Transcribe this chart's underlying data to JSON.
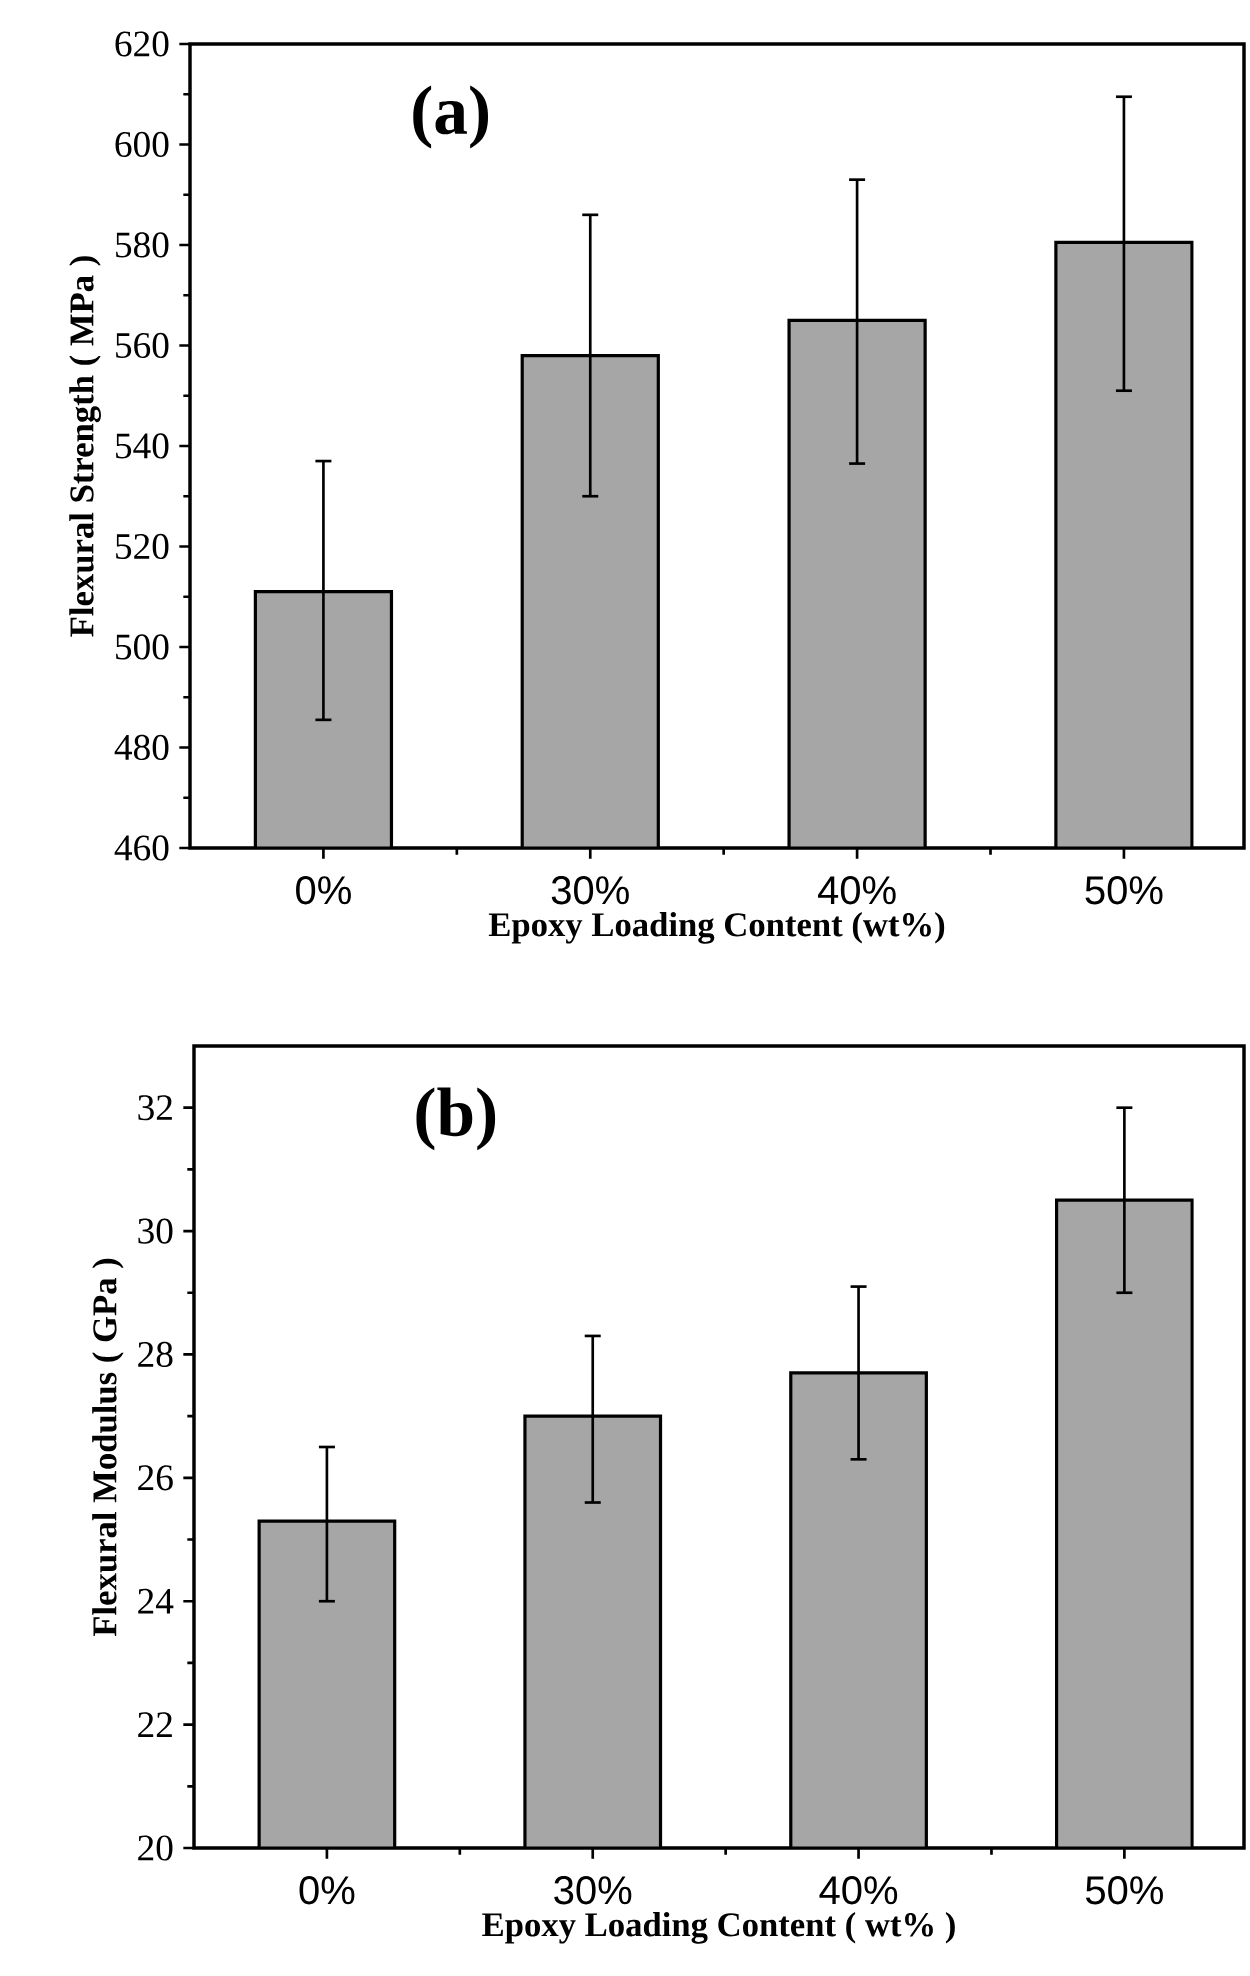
{
  "chart_data": [
    {
      "type": "bar",
      "annotations": [
        "(a)"
      ],
      "xlabel": "Epoxy Loading Content (wt%)",
      "ylabel": "Flexural Strength ( MPa )",
      "categories": [
        "0%",
        "30%",
        "40%",
        "50%"
      ],
      "values": [
        511,
        558,
        565,
        580.5
      ],
      "errors": [
        [
          485.5,
          537
        ],
        [
          530,
          586
        ],
        [
          536.5,
          593
        ],
        [
          551,
          609.5
        ]
      ],
      "color": "#a6a6a6",
      "ylim": [
        460,
        620
      ],
      "yticks": [
        460,
        480,
        500,
        520,
        540,
        560,
        580,
        600,
        620
      ]
    },
    {
      "type": "bar",
      "annotations": [
        "(b)"
      ],
      "xlabel": "Epoxy Loading Content ( wt% )",
      "ylabel": "Flexural Modulus ( GPa )",
      "categories": [
        "0%",
        "30%",
        "40%",
        "50%"
      ],
      "values": [
        25.3,
        27.0,
        27.7,
        30.5
      ],
      "errors": [
        [
          24.0,
          26.5
        ],
        [
          25.6,
          28.3
        ],
        [
          26.3,
          29.1
        ],
        [
          29.0,
          32.0
        ]
      ],
      "color": "#a6a6a6",
      "ylim": [
        20,
        33
      ],
      "yticks": [
        20,
        22,
        24,
        26,
        28,
        30,
        32
      ]
    }
  ]
}
